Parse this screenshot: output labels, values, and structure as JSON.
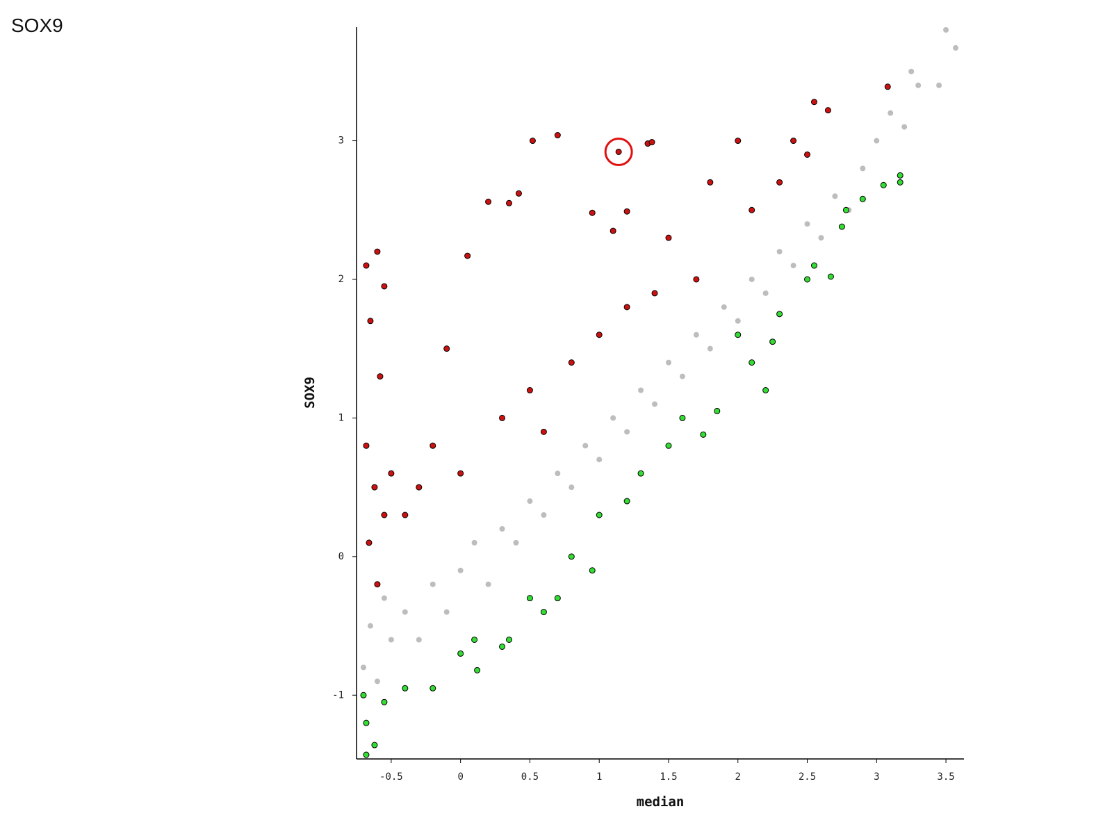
{
  "chart_data": {
    "type": "scatter",
    "title": "SOX9",
    "xlabel": "median",
    "ylabel": "SOX9",
    "xlim": [
      -0.75,
      3.63
    ],
    "ylim": [
      -1.46,
      3.82
    ],
    "xticks": [
      -0.5,
      0,
      0.5,
      1,
      1.5,
      2,
      2.5,
      3,
      3.5
    ],
    "yticks": [
      -1,
      0,
      1,
      2,
      3
    ],
    "grid": false,
    "series": [
      {
        "color": "#bdbdbd",
        "outline": false,
        "x": [
          -0.7,
          -0.65,
          -0.6,
          -0.55,
          -0.5,
          -0.4,
          -0.3,
          -0.2,
          -0.1,
          0,
          0.1,
          0.2,
          0.3,
          0.4,
          0.5,
          0.6,
          0.7,
          0.8,
          0.9,
          1,
          1.1,
          1.2,
          1.3,
          1.4,
          1.5,
          1.6,
          1.7,
          1.8,
          1.9,
          2,
          2.1,
          2.2,
          2.3,
          2.4,
          2.5,
          2.6,
          2.7,
          2.8,
          2.9,
          3,
          3.1,
          3.2,
          3.3,
          3.5,
          3.57,
          3.25,
          3.45
        ],
        "y": [
          -0.8,
          -0.5,
          -0.9,
          -0.3,
          -0.6,
          -0.4,
          -0.6,
          -0.2,
          -0.4,
          -0.1,
          0.1,
          -0.2,
          0.2,
          0.1,
          0.4,
          0.3,
          0.6,
          0.5,
          0.8,
          0.7,
          1,
          0.9,
          1.2,
          1.1,
          1.4,
          1.3,
          1.6,
          1.5,
          1.8,
          1.7,
          2,
          1.9,
          2.2,
          2.1,
          2.4,
          2.3,
          2.6,
          2.5,
          2.8,
          3.0,
          3.2,
          3.1,
          3.4,
          3.8,
          3.67,
          3.5,
          3.4
        ]
      },
      {
        "color": "#cc1111",
        "outline": true,
        "x": [
          -0.68,
          -0.6,
          -0.55,
          -0.65,
          -0.58,
          -0.68,
          -0.62,
          -0.55,
          -0.66,
          -0.6,
          -0.5,
          -0.4,
          -0.3,
          -0.2,
          -0.1,
          0,
          0.05,
          0.2,
          0.35,
          0.42,
          0.52,
          0.7,
          0.5,
          0.6,
          0.8,
          0.95,
          1.1,
          1.14,
          1.2,
          1.35,
          1.38,
          1.0,
          1.2,
          1.4,
          1.5,
          1.7,
          1.8,
          2.0,
          2.1,
          2.3,
          2.5,
          2.55,
          2.65,
          3.08,
          2.4,
          0.3
        ],
        "y": [
          2.1,
          2.2,
          1.95,
          1.7,
          1.3,
          0.8,
          0.5,
          0.3,
          0.1,
          -0.2,
          0.6,
          0.3,
          0.5,
          0.8,
          1.5,
          0.6,
          2.17,
          2.56,
          2.55,
          2.62,
          3.0,
          3.04,
          1.2,
          0.9,
          1.4,
          2.48,
          2.35,
          2.92,
          2.49,
          2.98,
          2.99,
          1.6,
          1.8,
          1.9,
          2.3,
          2.0,
          2.7,
          3.0,
          2.5,
          2.7,
          2.9,
          3.28,
          3.22,
          3.39,
          3.0,
          1.0
        ]
      },
      {
        "color": "#33dd33",
        "outline": true,
        "x": [
          -0.7,
          -0.68,
          -0.62,
          -0.68,
          -0.55,
          -0.4,
          -0.2,
          0,
          0.1,
          0.12,
          0.3,
          0.35,
          0.5,
          0.6,
          0.7,
          0.95,
          1.0,
          1.2,
          1.3,
          1.5,
          1.6,
          1.75,
          1.85,
          2.0,
          2.1,
          2.25,
          2.3,
          2.5,
          2.55,
          2.67,
          2.78,
          2.9,
          3.05,
          3.17,
          3.17,
          2.75,
          2.2,
          0.8
        ],
        "y": [
          -1.0,
          -1.43,
          -1.36,
          -1.2,
          -1.05,
          -0.95,
          -0.95,
          -0.7,
          -0.6,
          -0.82,
          -0.65,
          -0.6,
          -0.3,
          -0.4,
          -0.3,
          -0.1,
          0.3,
          0.4,
          0.6,
          0.8,
          1.0,
          0.88,
          1.05,
          1.6,
          1.4,
          1.55,
          1.75,
          2.0,
          2.1,
          2.02,
          2.5,
          2.58,
          2.68,
          2.75,
          2.7,
          2.38,
          1.2,
          0.0
        ]
      }
    ],
    "highlight": {
      "x": 1.14,
      "y": 2.92,
      "color": "#e01010"
    }
  }
}
